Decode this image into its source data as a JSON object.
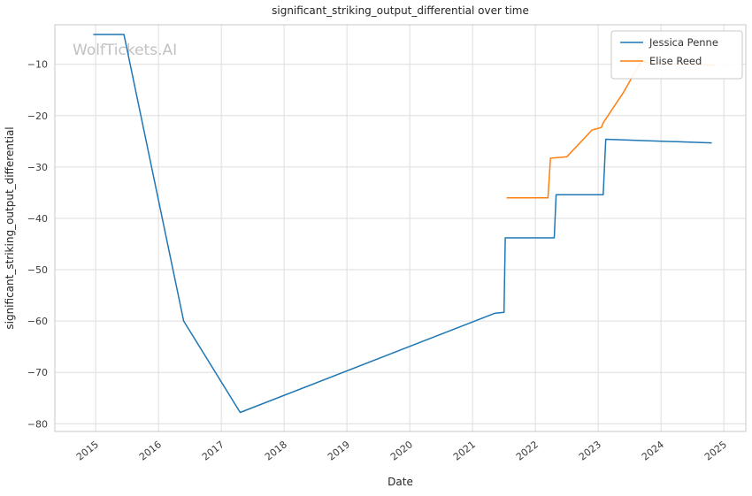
{
  "chart_data": {
    "type": "line",
    "title": "significant_striking_output_differential over time",
    "xlabel": "Date",
    "ylabel": "significant_striking_output_differential",
    "watermark": "WolfTickets.AI",
    "xlim": [
      2014.35,
      2025.35
    ],
    "ylim": [
      -81.5,
      -2.3
    ],
    "x_ticks": [
      2015,
      2016,
      2017,
      2018,
      2019,
      2020,
      2021,
      2022,
      2023,
      2024,
      2025
    ],
    "y_ticks": [
      -80,
      -70,
      -60,
      -50,
      -40,
      -30,
      -20,
      -10
    ],
    "grid": true,
    "legend_position": "upper right",
    "background": "#ffffff",
    "grid_color": "#dddddd",
    "axis_border_color": "#c8c8c8",
    "tick_label_color": "#3b3b3b",
    "text_color": "#262626",
    "watermark_color": "#c2c2c2",
    "series": [
      {
        "name": "Jessica Penne",
        "color": "#1f77b4",
        "points": [
          [
            2014.97,
            -4.2
          ],
          [
            2015.45,
            -4.2
          ],
          [
            2016.4,
            -60.0
          ],
          [
            2017.3,
            -77.8
          ],
          [
            2021.35,
            -58.5
          ],
          [
            2021.5,
            -58.3
          ],
          [
            2021.52,
            -43.8
          ],
          [
            2022.3,
            -43.8
          ],
          [
            2022.33,
            -35.4
          ],
          [
            2023.08,
            -35.4
          ],
          [
            2023.12,
            -24.6
          ],
          [
            2023.6,
            -24.8
          ],
          [
            2024.8,
            -25.3
          ]
        ]
      },
      {
        "name": "Elise Reed",
        "color": "#ff7f0e",
        "points": [
          [
            2021.55,
            -36.0
          ],
          [
            2022.2,
            -36.0
          ],
          [
            2022.24,
            -28.3
          ],
          [
            2022.5,
            -28.0
          ],
          [
            2022.9,
            -22.8
          ],
          [
            2023.05,
            -22.3
          ],
          [
            2023.08,
            -21.4
          ],
          [
            2023.4,
            -15.5
          ],
          [
            2023.68,
            -9.5
          ],
          [
            2023.9,
            -9.8
          ],
          [
            2024.85,
            -10.2
          ]
        ]
      }
    ]
  }
}
